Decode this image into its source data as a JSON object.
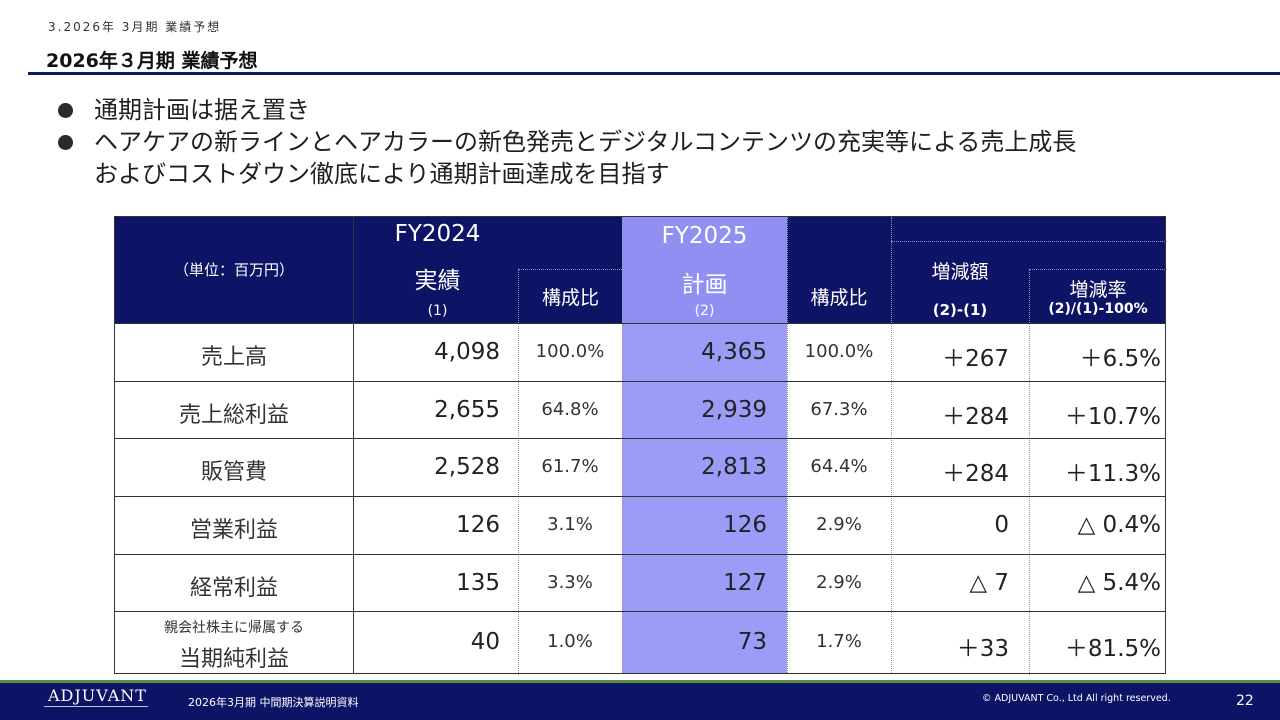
{
  "header": {
    "section_num": "3.2026年 3月期 業績予想",
    "title": "2026年３月期 業績予想"
  },
  "bullets": [
    "通期計画は据え置き",
    "ヘアケアの新ラインとヘアカラーの新色発売とデジタルコンテンツの充実等による売上成長",
    "およびコストダウン徹底により通期計画達成を目指す"
  ],
  "table": {
    "unit": "（単位：百万円）",
    "fy2024": {
      "year": "FY2024",
      "label": "実績",
      "tag": "(1)"
    },
    "ratio_label": "構成比",
    "fy2025": {
      "year": "FY2025",
      "label": "計画",
      "tag": "(2)"
    },
    "ratio2_label": "構成比",
    "diff": {
      "label": "増減額",
      "tag": "(2)-(1)"
    },
    "rate": {
      "label": "増減率",
      "tag": "(2)/(1)-100%"
    },
    "rows": [
      {
        "label": "売上高",
        "fy2024": "4,098",
        "ratio1": "100.0%",
        "fy2025": "4,365",
        "ratio2": "100.0%",
        "diff": "＋267",
        "rate": "＋6.5%"
      },
      {
        "label": "売上総利益",
        "fy2024": "2,655",
        "ratio1": "64.8%",
        "fy2025": "2,939",
        "ratio2": "67.3%",
        "diff": "＋284",
        "rate": "＋10.7%"
      },
      {
        "label": "販管費",
        "fy2024": "2,528",
        "ratio1": "61.7%",
        "fy2025": "2,813",
        "ratio2": "64.4%",
        "diff": "＋284",
        "rate": "＋11.3%"
      },
      {
        "label": "営業利益",
        "fy2024": "126",
        "ratio1": "3.1%",
        "fy2025": "126",
        "ratio2": "2.9%",
        "diff": "0",
        "rate": "△ 0.4%"
      },
      {
        "label": "経常利益",
        "fy2024": "135",
        "ratio1": "3.3%",
        "fy2025": "127",
        "ratio2": "2.9%",
        "diff": "△ 7",
        "rate": "△ 5.4%"
      },
      {
        "label_top": "親会社株主に帰属する",
        "label": "当期純利益",
        "fy2024": "40",
        "ratio1": "1.0%",
        "fy2025": "73",
        "ratio2": "1.7%",
        "diff": "＋33",
        "rate": "＋81.5%"
      }
    ]
  },
  "footer": {
    "logo": "ADJUVANT",
    "doc": "2026年3月期 中間期決算説明資料",
    "copyright": "© ADJUVANT Co., Ltd All right reserved.",
    "page": "22"
  },
  "colors": {
    "header_bg": "#0d1466",
    "plan_col": "#9b9cf7",
    "footer_accent": "#5b8f3d"
  }
}
